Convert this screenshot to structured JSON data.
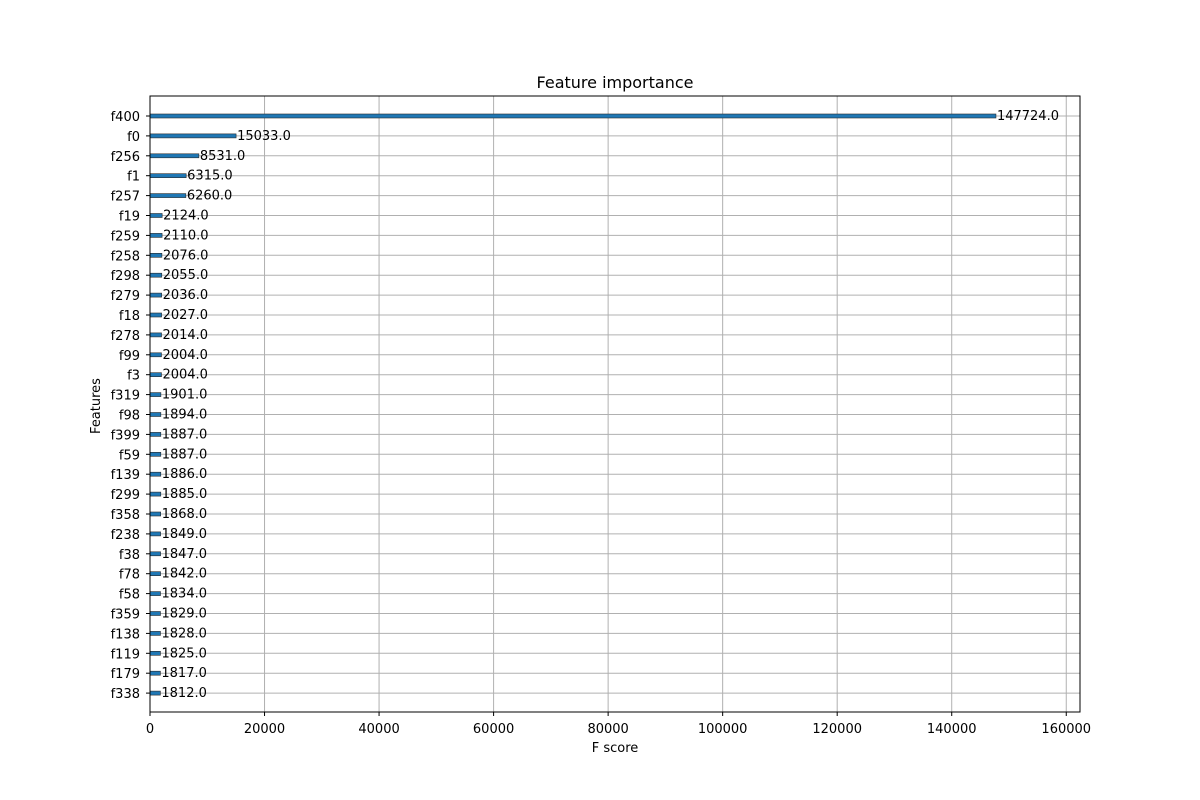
{
  "chart_data": {
    "type": "bar",
    "orientation": "horizontal",
    "title": "Feature importance",
    "xlabel": "F score",
    "ylabel": "Features",
    "xlim": [
      0,
      162400
    ],
    "xticks": [
      0,
      20000,
      40000,
      60000,
      80000,
      100000,
      120000,
      140000,
      160000
    ],
    "grid": true,
    "bar_color": "#1f77b4",
    "categories": [
      "f400",
      "f0",
      "f256",
      "f1",
      "f257",
      "f19",
      "f259",
      "f258",
      "f298",
      "f279",
      "f18",
      "f278",
      "f99",
      "f3",
      "f319",
      "f98",
      "f399",
      "f59",
      "f139",
      "f299",
      "f358",
      "f238",
      "f38",
      "f78",
      "f58",
      "f359",
      "f138",
      "f119",
      "f179",
      "f338"
    ],
    "values": [
      147724,
      15033,
      8531,
      6315,
      6260,
      2124,
      2110,
      2076,
      2055,
      2036,
      2027,
      2014,
      2004,
      2004,
      1901,
      1894,
      1887,
      1887,
      1886,
      1885,
      1868,
      1849,
      1847,
      1842,
      1834,
      1829,
      1828,
      1825,
      1817,
      1812
    ],
    "value_labels": [
      "147724.0",
      "15033.0",
      "8531.0",
      "6315.0",
      "6260.0",
      "2124.0",
      "2110.0",
      "2076.0",
      "2055.0",
      "2036.0",
      "2027.0",
      "2014.0",
      "2004.0",
      "2004.0",
      "1901.0",
      "1894.0",
      "1887.0",
      "1887.0",
      "1886.0",
      "1885.0",
      "1868.0",
      "1849.0",
      "1847.0",
      "1842.0",
      "1834.0",
      "1829.0",
      "1828.0",
      "1825.0",
      "1817.0",
      "1812.0"
    ]
  }
}
